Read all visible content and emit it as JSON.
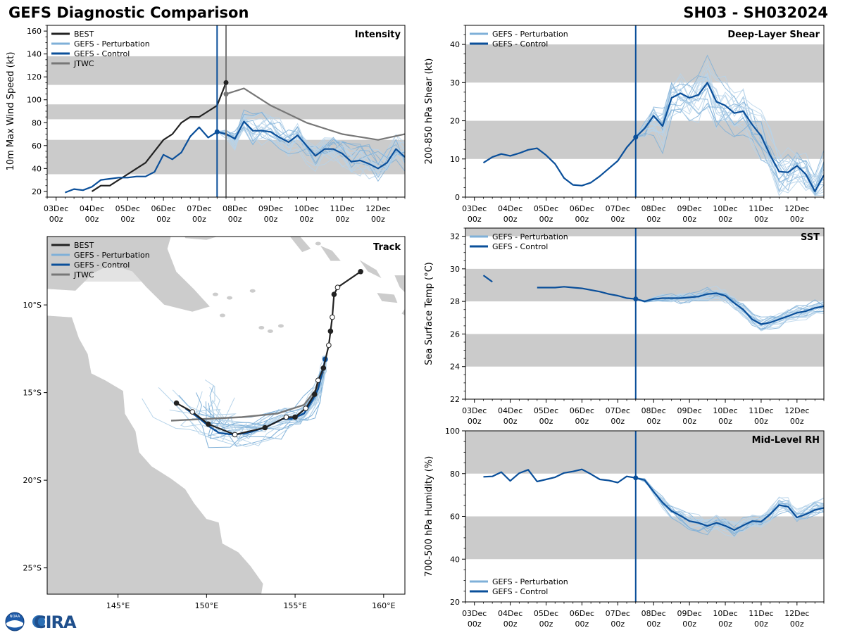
{
  "header": {
    "title_left": "GEFS Diagnostic Comparison",
    "title_right": "SH03 - SH032024"
  },
  "colors": {
    "best": "#222222",
    "perturbation": "#7fb0d8",
    "perturbation_light": "#b7d4ea",
    "control": "#0a4f9a",
    "jtwc": "#777777",
    "band": "#cbcbcb",
    "land": "#cccccc"
  },
  "time_axis": {
    "ticks": [
      0,
      24,
      48,
      72,
      96,
      120,
      144,
      168,
      192,
      216
    ],
    "day_labels": [
      "03Dec",
      "04Dec",
      "05Dec",
      "06Dec",
      "07Dec",
      "08Dec",
      "09Dec",
      "10Dec",
      "11Dec",
      "12Dec"
    ],
    "hour_label": "00z",
    "range_hours": [
      -6,
      234
    ],
    "init_hour": 108
  },
  "legend": {
    "best": "BEST",
    "perturbation": "GEFS - Perturbation",
    "control": "GEFS - Control",
    "jtwc": "JTWC"
  },
  "logo": {
    "text": "CIRA",
    "noaa_text": "NOAA"
  },
  "chart_data": [
    {
      "id": "intensity",
      "type": "line",
      "title": "Intensity",
      "xlabel": "",
      "ylabel": "10m Max Wind Speed (kt)",
      "ylim": [
        15,
        165
      ],
      "yticks": [
        20,
        40,
        60,
        80,
        100,
        120,
        140,
        160
      ],
      "bands": [
        [
          35,
          65
        ],
        [
          83,
          96
        ],
        [
          113,
          138
        ]
      ],
      "init_hour": 108,
      "extra_vline_hour": 114,
      "series": [
        {
          "name": "BEST",
          "role": "best",
          "x": [
            24,
            30,
            36,
            42,
            48,
            54,
            60,
            66,
            72,
            78,
            84,
            90,
            96,
            102,
            108,
            114
          ],
          "y": [
            20,
            25,
            25,
            30,
            35,
            40,
            45,
            55,
            65,
            70,
            80,
            85,
            85,
            90,
            95,
            115
          ]
        },
        {
          "name": "GEFS - Control",
          "role": "control",
          "x": [
            6,
            12,
            18,
            24,
            30,
            36,
            42,
            48,
            54,
            60,
            66,
            72,
            78,
            84,
            90,
            96,
            102,
            108,
            114,
            120,
            126,
            132,
            138,
            144,
            150,
            156,
            162,
            168,
            174,
            180,
            186,
            192,
            198,
            204,
            210,
            216,
            222,
            228,
            234
          ],
          "y": [
            19,
            22,
            21,
            24,
            30,
            31,
            32,
            32,
            33,
            33,
            37,
            52,
            48,
            54,
            68,
            76,
            67,
            72,
            70,
            66,
            81,
            73,
            73,
            72,
            67,
            63,
            69,
            60,
            51,
            57,
            57,
            53,
            46,
            47,
            44,
            40,
            45,
            57,
            50
          ]
        },
        {
          "name": "JTWC",
          "role": "jtwc",
          "x": [
            114,
            126,
            144,
            168,
            192,
            216,
            234
          ],
          "y": [
            105,
            110,
            95,
            80,
            70,
            65,
            70
          ]
        }
      ]
    },
    {
      "id": "shear",
      "type": "line",
      "title": "Deep-Layer Shear",
      "xlabel": "",
      "ylabel": "200-850 hPa Shear (kt)",
      "ylim": [
        0,
        45
      ],
      "yticks": [
        0,
        10,
        20,
        30,
        40
      ],
      "bands": [
        [
          10,
          20
        ],
        [
          30,
          40
        ]
      ],
      "init_hour": 108,
      "series": [
        {
          "name": "GEFS - Control",
          "role": "control",
          "x": [
            6,
            12,
            18,
            24,
            30,
            36,
            42,
            48,
            54,
            60,
            66,
            72,
            78,
            84,
            90,
            96,
            102,
            108,
            114,
            120,
            126,
            132,
            138,
            144,
            150,
            156,
            162,
            168,
            174,
            180,
            186,
            192,
            198,
            204,
            210,
            216,
            222,
            228,
            234
          ],
          "y": [
            9,
            10.5,
            11.3,
            10.8,
            11.5,
            12.4,
            12.8,
            11,
            8.7,
            5,
            3.2,
            3,
            3.8,
            5.5,
            7.5,
            9.5,
            13,
            15.7,
            18,
            21.3,
            18.6,
            26,
            27.2,
            26,
            26.8,
            30,
            25,
            24,
            22,
            22.5,
            19,
            16,
            11,
            6.7,
            6.5,
            8.2,
            6,
            1.5,
            5.8
          ]
        }
      ]
    },
    {
      "id": "sst",
      "type": "line",
      "title": "SST",
      "xlabel": "",
      "ylabel": "Sea Surface Temp (°C)",
      "ylim": [
        22,
        32.5
      ],
      "yticks": [
        22,
        24,
        26,
        28,
        30,
        32
      ],
      "bands": [
        [
          24,
          26
        ],
        [
          28,
          30
        ],
        [
          32,
          32.5
        ]
      ],
      "init_hour": 108,
      "series": [
        {
          "name": "GEFS - Control",
          "role": "control",
          "x": [
            6,
            12
          ],
          "y": [
            29.6,
            29.2
          ]
        },
        {
          "name": "GEFS - Control",
          "role": "control",
          "x": [
            42,
            48,
            54,
            60,
            66,
            72,
            78,
            84,
            90,
            96,
            102,
            108,
            114,
            120,
            126,
            132,
            138,
            144,
            150,
            156,
            162,
            168,
            174,
            180,
            186,
            192,
            198,
            204,
            210,
            216,
            222,
            228,
            234
          ],
          "y": [
            28.85,
            28.85,
            28.85,
            28.9,
            28.85,
            28.8,
            28.7,
            28.6,
            28.45,
            28.35,
            28.2,
            28.15,
            28.0,
            28.15,
            28.2,
            28.2,
            28.2,
            28.25,
            28.3,
            28.45,
            28.5,
            28.35,
            27.9,
            27.5,
            26.9,
            26.6,
            26.7,
            26.9,
            27.1,
            27.3,
            27.4,
            27.6,
            27.7
          ]
        }
      ]
    },
    {
      "id": "rh",
      "type": "line",
      "title": "Mid-Level RH",
      "xlabel": "",
      "ylabel": "700-500 hPa Humidity (%)",
      "ylim": [
        20,
        100
      ],
      "yticks": [
        20,
        40,
        60,
        80,
        100
      ],
      "bands": [
        [
          40,
          60
        ],
        [
          80,
          100
        ]
      ],
      "init_hour": 108,
      "series": [
        {
          "name": "GEFS - Control",
          "role": "control",
          "x": [
            6,
            12,
            18,
            24,
            30,
            36,
            42,
            48,
            54,
            60,
            66,
            72,
            78,
            84,
            90,
            96,
            102,
            108,
            114,
            120,
            126,
            132,
            138,
            144,
            150,
            156,
            162,
            168,
            174,
            180,
            186,
            192,
            198,
            204,
            210,
            216,
            222,
            228,
            234
          ],
          "y": [
            78.5,
            78.7,
            80.7,
            76.6,
            80.2,
            81.8,
            76.3,
            77.3,
            78.3,
            80.3,
            81,
            82,
            79.8,
            77.3,
            76.8,
            75.8,
            78.7,
            78,
            77,
            71.5,
            66.5,
            62.5,
            60.3,
            57.8,
            57,
            55.5,
            57,
            55.6,
            53.6,
            55.8,
            57.8,
            57.5,
            61,
            65.3,
            64.5,
            59.5,
            61,
            63,
            64
          ]
        }
      ]
    },
    {
      "id": "track",
      "type": "scatter",
      "title": "Track",
      "xlabel": "",
      "ylabel": "",
      "xlim": [
        141,
        161.2
      ],
      "ylim": [
        -26.5,
        -6.1
      ],
      "xticks": [
        145,
        150,
        155,
        160
      ],
      "xtick_labels": [
        "145°E",
        "150°E",
        "155°E",
        "160°E"
      ],
      "yticks": [
        -10,
        -15,
        -20,
        -25
      ],
      "ytick_labels": [
        "10°S",
        "15°S",
        "20°S",
        "25°S"
      ],
      "series": [
        {
          "name": "BEST",
          "role": "best",
          "lon": [
            158.7,
            157.4,
            157.2,
            157.1,
            157.0,
            156.9,
            156.6,
            156.3,
            156.1,
            155.6,
            155.0,
            154.5,
            153.3,
            151.6,
            150.1,
            149.2,
            148.3
          ],
          "lat": [
            -8.1,
            -9.0,
            -9.4,
            -10.7,
            -11.5,
            -12.3,
            -13.6,
            -14.3,
            -15.1,
            -15.9,
            -16.4,
            -16.4,
            -17.0,
            -17.4,
            -16.8,
            -16.1,
            -15.6
          ]
        },
        {
          "name": "GEFS - Control",
          "role": "control",
          "lon": [
            156.7,
            156.6,
            156.5,
            156.3,
            156.0,
            155.5,
            154.8,
            154.3,
            153.3,
            152.3,
            151.5,
            150.7,
            150.1,
            149.5,
            148.8
          ],
          "lat": [
            -13.1,
            -13.6,
            -14.0,
            -14.8,
            -15.4,
            -16.2,
            -16.5,
            -16.5,
            -17.0,
            -17.3,
            -17.4,
            -17.3,
            -16.9,
            -16.4,
            -15.9
          ]
        },
        {
          "name": "JTWC",
          "role": "jtwc",
          "lon": [
            156.6,
            156.2,
            155.5,
            154.0,
            152.0,
            150.0,
            148.0
          ],
          "lat": [
            -13.8,
            -14.8,
            -15.7,
            -16.2,
            -16.4,
            -16.5,
            -16.6
          ]
        }
      ]
    }
  ]
}
